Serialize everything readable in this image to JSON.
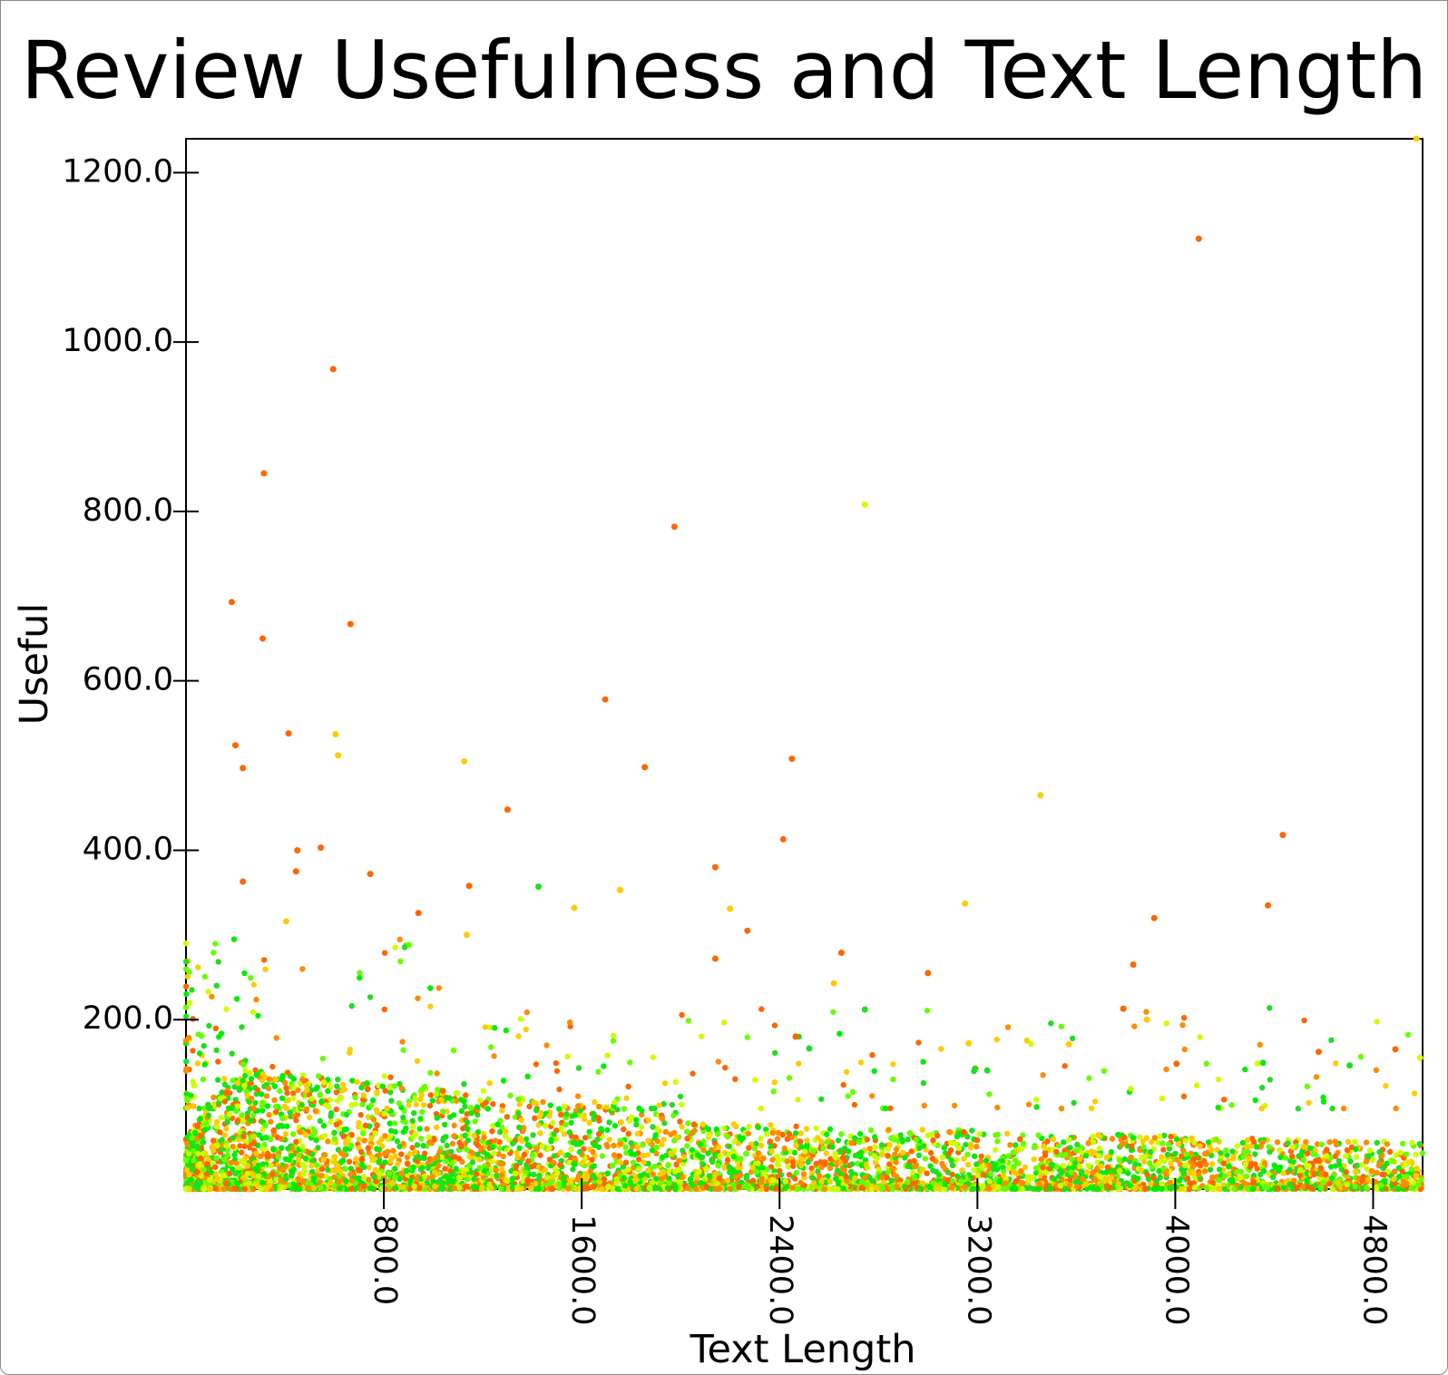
{
  "chart_data": {
    "type": "scatter",
    "title": "Review Usefulness and Text Length",
    "xlabel": "Text Length",
    "ylabel": "Useful",
    "xlim": [
      0,
      5000
    ],
    "ylim": [
      0,
      1240
    ],
    "x_ticks": [
      "800.0",
      "1600.0",
      "2400.0",
      "3200.0",
      "4000.0",
      "4800.0"
    ],
    "y_ticks": [
      "200.0",
      "400.0",
      "600.0",
      "800.0",
      "1000.0",
      "1200.0"
    ],
    "grid": false,
    "legend": "none",
    "colors": [
      "#ff6600",
      "#ff8c00",
      "#ffcc00",
      "#ccff00",
      "#66ff00",
      "#00ee00",
      "#22dd22"
    ],
    "outliers": [
      {
        "x": 4095,
        "y": 1122,
        "color": "#ff6600"
      },
      {
        "x": 595,
        "y": 968,
        "color": "#ff6600"
      },
      {
        "x": 315,
        "y": 845,
        "color": "#ff6600"
      },
      {
        "x": 2745,
        "y": 808,
        "color": "#ccff00"
      },
      {
        "x": 1975,
        "y": 782,
        "color": "#ff6600"
      },
      {
        "x": 185,
        "y": 693,
        "color": "#ff6600"
      },
      {
        "x": 665,
        "y": 667,
        "color": "#ff6600"
      },
      {
        "x": 310,
        "y": 650,
        "color": "#ff6600"
      },
      {
        "x": 1695,
        "y": 578,
        "color": "#ff6600"
      },
      {
        "x": 415,
        "y": 538,
        "color": "#ff6600"
      },
      {
        "x": 605,
        "y": 537,
        "color": "#ffcc00"
      },
      {
        "x": 200,
        "y": 524,
        "color": "#ff6600"
      },
      {
        "x": 615,
        "y": 512,
        "color": "#ffcc00"
      },
      {
        "x": 2450,
        "y": 508,
        "color": "#ff6600"
      },
      {
        "x": 1125,
        "y": 505,
        "color": "#ffcc00"
      },
      {
        "x": 1855,
        "y": 498,
        "color": "#ff6600"
      },
      {
        "x": 230,
        "y": 497,
        "color": "#ff6600"
      },
      {
        "x": 3455,
        "y": 465,
        "color": "#ffcc00"
      },
      {
        "x": 1300,
        "y": 448,
        "color": "#ff6600"
      },
      {
        "x": 4435,
        "y": 418,
        "color": "#ff6600"
      },
      {
        "x": 2415,
        "y": 413,
        "color": "#ff6600"
      },
      {
        "x": 545,
        "y": 403,
        "color": "#ff6600"
      },
      {
        "x": 450,
        "y": 400,
        "color": "#ff6600"
      },
      {
        "x": 2140,
        "y": 380,
        "color": "#ff6600"
      },
      {
        "x": 445,
        "y": 375,
        "color": "#ff6600"
      },
      {
        "x": 745,
        "y": 372,
        "color": "#ff6600"
      },
      {
        "x": 230,
        "y": 363,
        "color": "#ff6600"
      },
      {
        "x": 1145,
        "y": 358,
        "color": "#ff6600"
      },
      {
        "x": 1425,
        "y": 357,
        "color": "#22dd22"
      },
      {
        "x": 1755,
        "y": 353,
        "color": "#ffcc00"
      },
      {
        "x": 4375,
        "y": 335,
        "color": "#ff6600"
      },
      {
        "x": 3150,
        "y": 337,
        "color": "#ffcc00"
      },
      {
        "x": 1570,
        "y": 332,
        "color": "#ffcc00"
      },
      {
        "x": 2200,
        "y": 331,
        "color": "#ffcc00"
      },
      {
        "x": 940,
        "y": 326,
        "color": "#ff6600"
      },
      {
        "x": 3915,
        "y": 320,
        "color": "#ff6600"
      },
      {
        "x": 405,
        "y": 316,
        "color": "#ffcc00"
      },
      {
        "x": 2270,
        "y": 305,
        "color": "#ff6600"
      },
      {
        "x": 1135,
        "y": 300,
        "color": "#ffcc00"
      },
      {
        "x": 2650,
        "y": 279,
        "color": "#ff6600"
      },
      {
        "x": 2140,
        "y": 272,
        "color": "#ff6600"
      },
      {
        "x": 3000,
        "y": 255,
        "color": "#ff6600"
      },
      {
        "x": 3830,
        "y": 265,
        "color": "#ff6600"
      },
      {
        "x": 2620,
        "y": 243,
        "color": "#ffcc00"
      },
      {
        "x": 3790,
        "y": 213,
        "color": "#ff6600"
      },
      {
        "x": 3885,
        "y": 200,
        "color": "#ffcc00"
      },
      {
        "x": 2745,
        "y": 212,
        "color": "#22dd22"
      },
      {
        "x": 3570,
        "y": 171,
        "color": "#ffcc00"
      },
      {
        "x": 4580,
        "y": 162,
        "color": "#ff6600"
      },
      {
        "x": 4890,
        "y": 165,
        "color": "#ff6600"
      },
      {
        "x": 3165,
        "y": 172,
        "color": "#ffcc00"
      },
      {
        "x": 2520,
        "y": 166,
        "color": "#22dd22"
      },
      {
        "x": 4355,
        "y": 149,
        "color": "#22dd22"
      },
      {
        "x": 4005,
        "y": 148,
        "color": "#ff6600"
      },
      {
        "x": 4705,
        "y": 146,
        "color": "#22dd22"
      },
      {
        "x": 4990,
        "y": 155,
        "color": "#ccff00"
      },
      {
        "x": 3190,
        "y": 142,
        "color": "#22dd22"
      },
      {
        "x": 3240,
        "y": 140,
        "color": "#22dd22"
      },
      {
        "x": 2465,
        "y": 180,
        "color": "#ff6600"
      },
      {
        "x": 4975,
        "y": 1240,
        "color": "#ffcc00"
      }
    ]
  }
}
